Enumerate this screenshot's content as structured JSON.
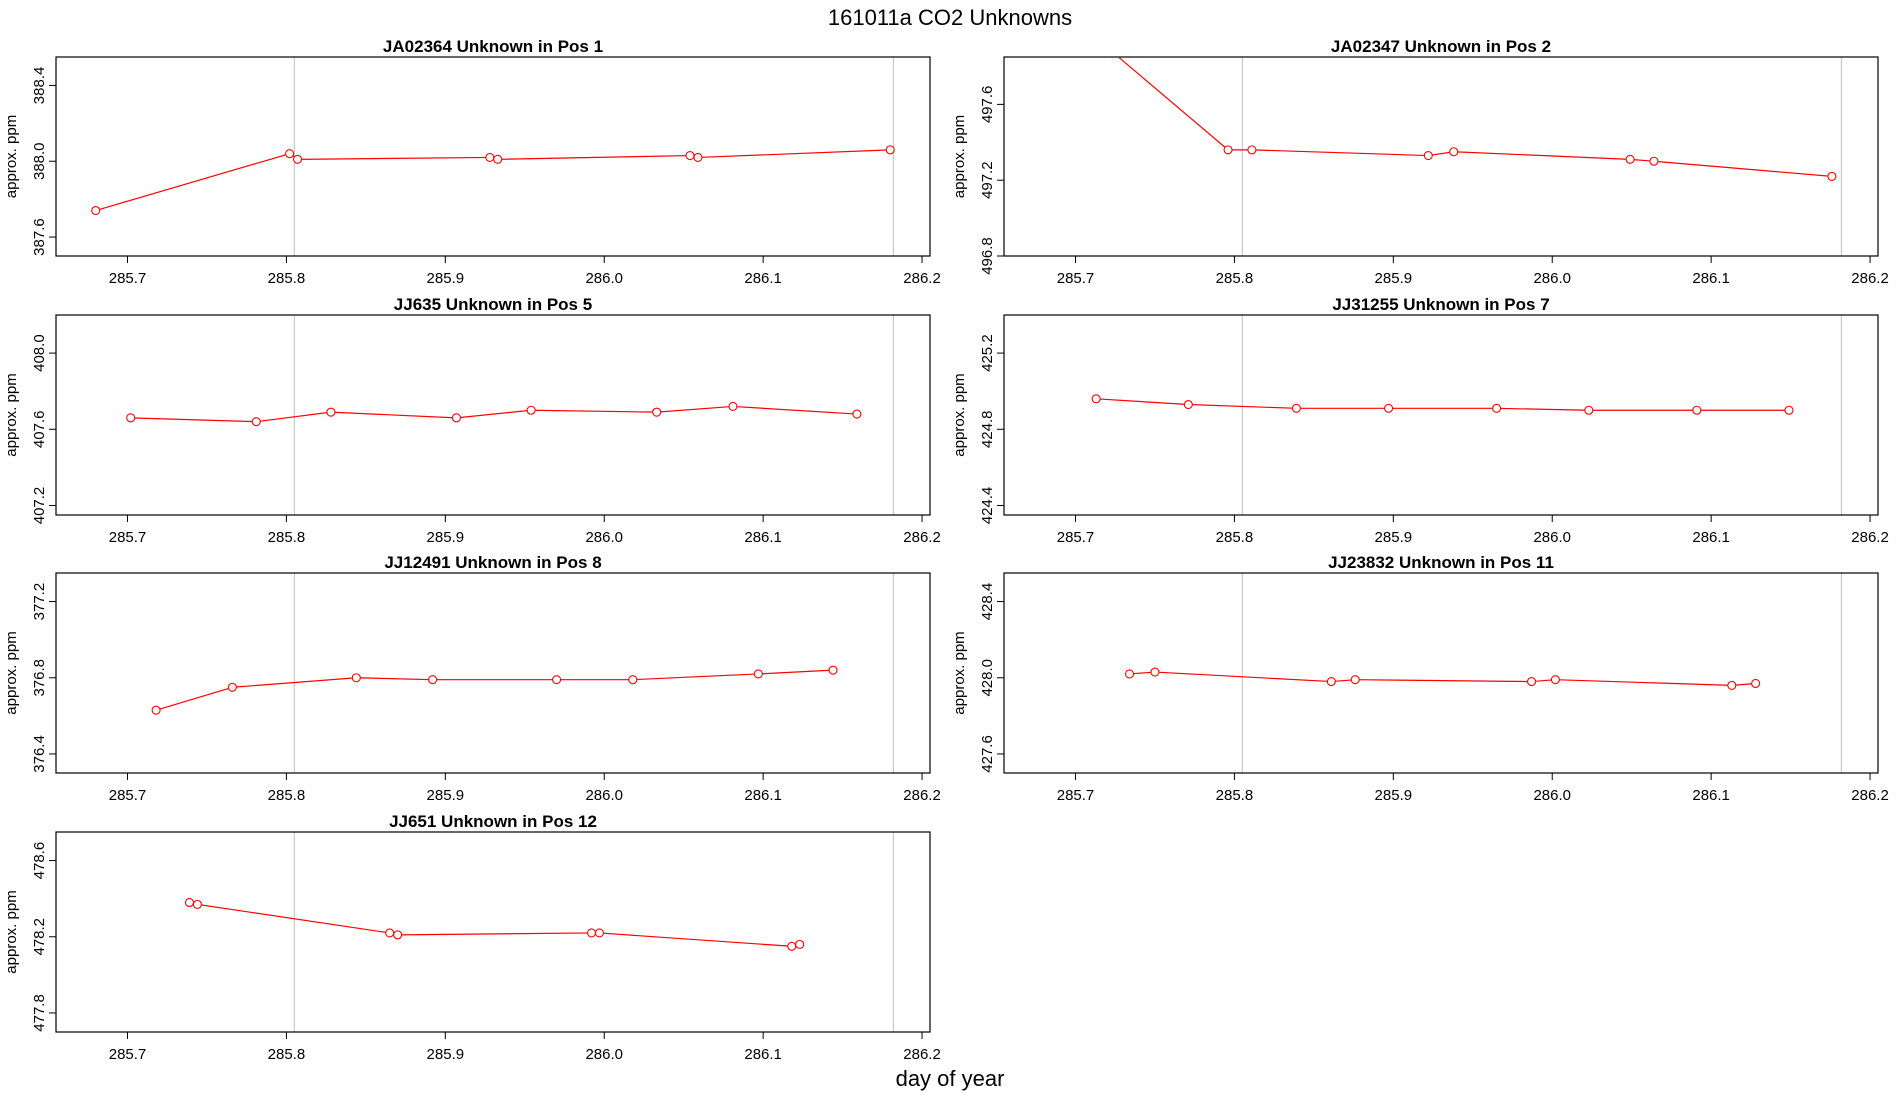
{
  "figure": {
    "title": "161011a  CO2 Unknowns",
    "xlabel": "day of year"
  },
  "colors": {
    "series": "#ff0000",
    "vline": "#c8c8c8",
    "frame": "#000000"
  },
  "chart_data": [
    {
      "type": "line",
      "title": "JA02364    Unknown in Pos 1",
      "xlabel": "",
      "ylabel": "approx. ppm",
      "xlim": [
        285.655,
        286.205
      ],
      "ylim": [
        387.5,
        388.55
      ],
      "xticks": [
        285.7,
        285.8,
        285.9,
        286.0,
        286.1,
        286.2
      ],
      "yticks": [
        387.6,
        388.0,
        388.4
      ],
      "vlines": [
        285.805,
        286.182
      ],
      "x": [
        285.68,
        285.802,
        285.807,
        285.928,
        285.933,
        286.054,
        286.059,
        286.18
      ],
      "y": [
        387.74,
        388.04,
        388.01,
        388.02,
        388.01,
        388.03,
        388.02,
        388.06
      ]
    },
    {
      "type": "line",
      "title": "JA02347    Unknown in Pos 2",
      "xlabel": "",
      "ylabel": "approx. ppm",
      "xlim": [
        285.655,
        286.205
      ],
      "ylim": [
        496.8,
        497.85
      ],
      "xticks": [
        285.7,
        285.8,
        285.9,
        286.0,
        286.1,
        286.2
      ],
      "yticks": [
        496.8,
        497.2,
        497.6
      ],
      "vlines": [
        285.805,
        286.182
      ],
      "x": [
        285.72,
        285.796,
        285.811,
        285.922,
        285.938,
        286.049,
        286.064,
        286.176
      ],
      "y": [
        497.9,
        497.36,
        497.36,
        497.33,
        497.35,
        497.31,
        497.3,
        497.22
      ]
    },
    {
      "type": "line",
      "title": "JJ635    Unknown in Pos 5",
      "xlabel": "",
      "ylabel": "approx. ppm",
      "xlim": [
        285.655,
        286.205
      ],
      "ylim": [
        407.15,
        408.2
      ],
      "xticks": [
        285.7,
        285.8,
        285.9,
        286.0,
        286.1,
        286.2
      ],
      "yticks": [
        407.2,
        407.6,
        408.0
      ],
      "vlines": [
        285.805,
        286.182
      ],
      "x": [
        285.702,
        285.781,
        285.828,
        285.907,
        285.954,
        286.033,
        286.081,
        286.159
      ],
      "y": [
        407.66,
        407.64,
        407.69,
        407.66,
        407.7,
        407.69,
        407.72,
        407.68
      ]
    },
    {
      "type": "line",
      "title": "JJ31255    Unknown in Pos 7",
      "xlabel": "",
      "ylabel": "approx. ppm",
      "xlim": [
        285.655,
        286.205
      ],
      "ylim": [
        424.35,
        425.4
      ],
      "xticks": [
        285.7,
        285.8,
        285.9,
        286.0,
        286.1,
        286.2
      ],
      "yticks": [
        424.4,
        424.8,
        425.2
      ],
      "vlines": [
        285.805,
        286.182
      ],
      "x": [
        285.713,
        285.771,
        285.839,
        285.897,
        285.965,
        286.023,
        286.091,
        286.149
      ],
      "y": [
        424.96,
        424.93,
        424.91,
        424.91,
        424.91,
        424.9,
        424.9,
        424.9
      ]
    },
    {
      "type": "line",
      "title": "JJ12491    Unknown in Pos 8",
      "xlabel": "",
      "ylabel": "approx. ppm",
      "xlim": [
        285.655,
        286.205
      ],
      "ylim": [
        376.3,
        377.35
      ],
      "xticks": [
        285.7,
        285.8,
        285.9,
        286.0,
        286.1,
        286.2
      ],
      "yticks": [
        376.4,
        376.8,
        377.2
      ],
      "vlines": [
        285.805,
        286.182
      ],
      "x": [
        285.718,
        285.766,
        285.844,
        285.892,
        285.97,
        286.018,
        286.097,
        286.144
      ],
      "y": [
        376.63,
        376.75,
        376.8,
        376.79,
        376.79,
        376.79,
        376.82,
        376.84
      ]
    },
    {
      "type": "line",
      "title": "JJ23832    Unknown in Pos 11",
      "xlabel": "",
      "ylabel": "approx. ppm",
      "xlim": [
        285.655,
        286.205
      ],
      "ylim": [
        427.5,
        428.55
      ],
      "xticks": [
        285.7,
        285.8,
        285.9,
        286.0,
        286.1,
        286.2
      ],
      "yticks": [
        427.6,
        428.0,
        428.4
      ],
      "vlines": [
        285.805,
        286.182
      ],
      "x": [
        285.734,
        285.75,
        285.861,
        285.876,
        285.987,
        286.002,
        286.113,
        286.128
      ],
      "y": [
        428.02,
        428.03,
        427.98,
        427.99,
        427.98,
        427.99,
        427.96,
        427.97
      ]
    },
    {
      "type": "line",
      "title": "JJ651    Unknown in Pos 12",
      "xlabel": "",
      "ylabel": "approx. ppm",
      "xlim": [
        285.655,
        286.205
      ],
      "ylim": [
        477.7,
        478.75
      ],
      "xticks": [
        285.7,
        285.8,
        285.9,
        286.0,
        286.1,
        286.2
      ],
      "yticks": [
        477.8,
        478.2,
        478.6
      ],
      "vlines": [
        285.805,
        286.182
      ],
      "x": [
        285.739,
        285.744,
        285.865,
        285.87,
        285.992,
        285.997,
        286.118,
        286.123
      ],
      "y": [
        478.38,
        478.37,
        478.22,
        478.21,
        478.22,
        478.22,
        478.15,
        478.16
      ]
    }
  ]
}
